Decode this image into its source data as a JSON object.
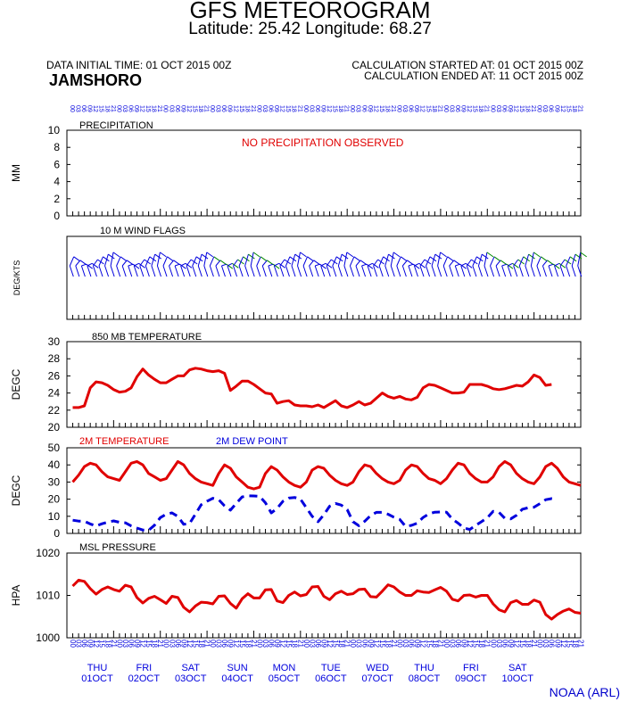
{
  "header": {
    "title": "GFS METEOROGRAM",
    "subtitle": "Latitude: 25.42 Longitude:  68.27",
    "init_time": "DATA INITIAL TIME: 01 OCT 2015 00Z",
    "station": "JAMSHORO",
    "calc_started": "CALCULATION STARTED AT: 01 OCT 2015 00Z",
    "calc_ended": "CALCULATION ENDED AT: 11 OCT 2015 00Z"
  },
  "footer": {
    "credit": "NOAA (ARL)"
  },
  "colors": {
    "red": "#e00000",
    "blue": "#0000dd",
    "green": "#008800",
    "frame": "#000000"
  },
  "x_axis": {
    "days": [
      {
        "dow": "THU",
        "date": "01OCT"
      },
      {
        "dow": "FRI",
        "date": "02OCT"
      },
      {
        "dow": "SAT",
        "date": "03OCT"
      },
      {
        "dow": "SUN",
        "date": "04OCT"
      },
      {
        "dow": "MON",
        "date": "05OCT"
      },
      {
        "dow": "TUE",
        "date": "06OCT"
      },
      {
        "dow": "WED",
        "date": "07OCT"
      },
      {
        "dow": "THU",
        "date": "08OCT"
      },
      {
        "dow": "FRI",
        "date": "09OCT"
      },
      {
        "dow": "SAT",
        "date": "10OCT"
      }
    ],
    "hour_labels": [
      "00",
      "03",
      "06",
      "09",
      "12",
      "15",
      "18",
      "21"
    ]
  },
  "chart_data": [
    {
      "type": "bar",
      "title": "PRECIPITATION",
      "ylabel": "MM",
      "ylim": [
        0,
        10
      ],
      "yticks": [
        "0",
        "2",
        "4",
        "6",
        "8",
        "10"
      ],
      "annotation": "NO PRECIPITATION OBSERVED",
      "series": [
        {
          "values": []
        }
      ]
    },
    {
      "type": "scatter",
      "title": "10 M  WIND FLAGS",
      "ylabel": "DEG/KTS",
      "note": "Wind barbs plotted every 3 hours; direction labels printed under each barb are illegible."
    },
    {
      "type": "line",
      "title": "850 MB  TEMPERATURE",
      "ylabel": "DEGC",
      "ylim": [
        20,
        30
      ],
      "yticks": [
        "20",
        "22",
        "24",
        "26",
        "28",
        "30"
      ],
      "series": [
        {
          "color": "red",
          "values": [
            22.3,
            22.3,
            22.5,
            24.6,
            25.3,
            25.2,
            24.9,
            24.4,
            24.1,
            24.2,
            24.6,
            25.9,
            26.8,
            26.1,
            25.6,
            25.2,
            25.2,
            25.6,
            26.0,
            26.0,
            26.7,
            26.9,
            26.8,
            26.6,
            26.5,
            26.6,
            26.3,
            24.3,
            24.8,
            25.4,
            25.4,
            25.0,
            24.5,
            24.0,
            23.9,
            22.8,
            23.0,
            23.1,
            22.6,
            22.5,
            22.5,
            22.4,
            22.6,
            22.3,
            22.7,
            23.1,
            22.5,
            22.3,
            22.6,
            23.0,
            22.6,
            22.8,
            23.4,
            24.0,
            23.6,
            23.4,
            23.6,
            23.3,
            23.2,
            23.5,
            24.6,
            25.0,
            24.9,
            24.6,
            24.3,
            24.0,
            24.0,
            24.1,
            25.0,
            25.0,
            25.0,
            24.8,
            24.5,
            24.4,
            24.5,
            24.7,
            24.9,
            24.8,
            25.3,
            26.1,
            25.8,
            24.9,
            25.0
          ]
        }
      ]
    },
    {
      "type": "line",
      "title": "",
      "ylabel": "DEGC",
      "ylim": [
        0,
        50
      ],
      "yticks": [
        "0",
        "10",
        "20",
        "30",
        "40",
        "50"
      ],
      "series": [
        {
          "name": "2M TEMPERATURE",
          "color": "red",
          "values": [
            30,
            34,
            39,
            41,
            40,
            36,
            33,
            32,
            31,
            36,
            41,
            42,
            40,
            35,
            33,
            31,
            32,
            37,
            42,
            40,
            35,
            32,
            30,
            29,
            28,
            35,
            40,
            38,
            33,
            30,
            27,
            26,
            27,
            35,
            39,
            37,
            33,
            30,
            28,
            27,
            30,
            37,
            39,
            38,
            34,
            31,
            29,
            28,
            30,
            36,
            40,
            39,
            35,
            32,
            30,
            29,
            31,
            37,
            40,
            39,
            35,
            32,
            31,
            29,
            32,
            37,
            41,
            40,
            35,
            32,
            30,
            30,
            33,
            39,
            42,
            40,
            35,
            32,
            30,
            29,
            33,
            39,
            41,
            38,
            33,
            30,
            29,
            28
          ]
        },
        {
          "name": "2M   DEW POINT",
          "color": "blue",
          "dash": true,
          "values": [
            7.7,
            7.2,
            7.1,
            5.5,
            4.3,
            5.6,
            6.6,
            7.3,
            6.5,
            6.2,
            4.4,
            3.1,
            2.0,
            1.9,
            4.8,
            9.2,
            11.2,
            12.0,
            9.9,
            5.3,
            5.8,
            11.2,
            16.7,
            18.8,
            20.5,
            19.7,
            16.1,
            13.6,
            17.5,
            21.3,
            22.0,
            21.9,
            21.6,
            17.9,
            12.0,
            14.6,
            18.8,
            20.6,
            21.0,
            20.0,
            15.0,
            10.0,
            6.8,
            10.9,
            15.9,
            17.5,
            16.5,
            13.9,
            6.8,
            4.5,
            7.1,
            10.4,
            12.3,
            12.3,
            11.2,
            9.5,
            8.2,
            4.1,
            4.7,
            6.0,
            9.3,
            11.4,
            12.4,
            12.5,
            12.4,
            8.4,
            6.0,
            3.1,
            2.3,
            4.7,
            6.8,
            9.1,
            12.9,
            12.3,
            8.8,
            8.5,
            10.6,
            14.1,
            15.0,
            15.3,
            17.4,
            19.7,
            20.3,
            20.0
          ]
        }
      ]
    },
    {
      "type": "line",
      "title": "MSL PRESSURE",
      "ylabel": "HPA",
      "ylim": [
        1000,
        1020
      ],
      "yticks": [
        "1000",
        "1010",
        "1020"
      ],
      "series": [
        {
          "color": "red",
          "values": [
            1012.2,
            1013.6,
            1013.3,
            1011.6,
            1010.3,
            1011.4,
            1012.0,
            1011.4,
            1011.0,
            1012.4,
            1012.0,
            1009.5,
            1008.2,
            1009.3,
            1009.8,
            1009.0,
            1008.1,
            1009.8,
            1009.5,
            1007.2,
            1006.1,
            1007.5,
            1008.4,
            1008.3,
            1008.0,
            1009.8,
            1009.9,
            1008.1,
            1007.0,
            1009.2,
            1010.4,
            1009.4,
            1009.4,
            1011.3,
            1011.4,
            1008.7,
            1008.3,
            1010.0,
            1010.8,
            1009.9,
            1010.2,
            1012.0,
            1012.1,
            1009.8,
            1009.0,
            1010.4,
            1011.0,
            1010.2,
            1010.4,
            1011.4,
            1011.5,
            1009.7,
            1009.6,
            1011.0,
            1012.5,
            1012.0,
            1010.8,
            1010.0,
            1010.0,
            1011.1,
            1010.8,
            1010.7,
            1011.3,
            1011.9,
            1011.0,
            1009.1,
            1008.7,
            1010.0,
            1010.1,
            1009.6,
            1010.0,
            1010.0,
            1008.0,
            1006.6,
            1006.1,
            1008.3,
            1008.8,
            1007.9,
            1007.9,
            1008.9,
            1008.4,
            1005.5,
            1004.4,
            1005.5,
            1006.3,
            1006.8,
            1006.0,
            1005.8
          ]
        }
      ]
    }
  ]
}
